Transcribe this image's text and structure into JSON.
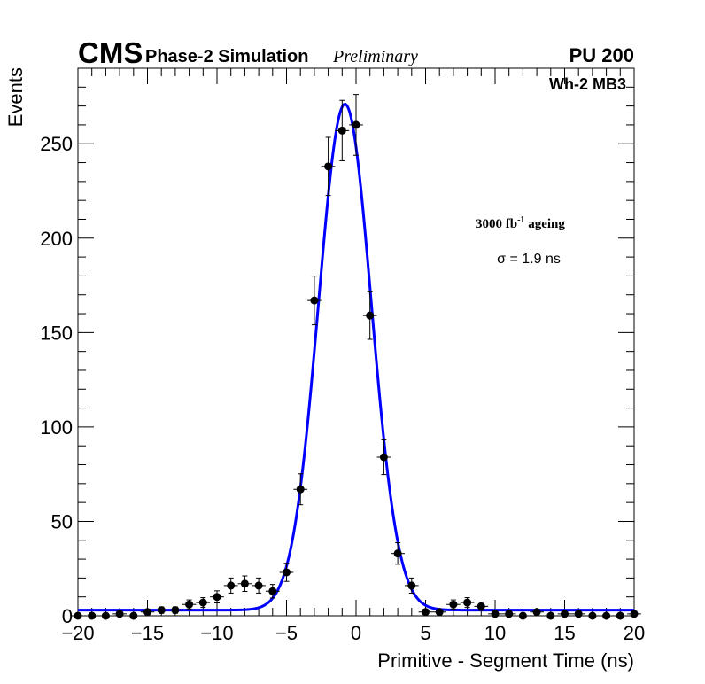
{
  "chart_data": {
    "type": "scatter",
    "header": {
      "experiment": "CMS",
      "subtitle": "Phase-2 Simulation",
      "status": "Preliminary",
      "pileup": "PU 200"
    },
    "region_label": "Wh-2 MB3",
    "annotations": {
      "ageing_main": "3000 fb",
      "ageing_sup": "-1",
      "ageing_tail": " ageing",
      "sigma": "σ = 1.9 ns"
    },
    "xlabel": "Primitive - Segment Time (ns)",
    "ylabel": "Events",
    "xlim": [
      -20,
      20
    ],
    "ylim": [
      0,
      290
    ],
    "xticks": [
      -20,
      -15,
      -10,
      -5,
      0,
      5,
      10,
      15,
      20
    ],
    "xtick_labels": [
      "−20",
      "−15",
      "−10",
      "−5",
      "0",
      "5",
      "10",
      "15",
      "20"
    ],
    "yticks": [
      0,
      50,
      100,
      150,
      200,
      250
    ],
    "ytick_labels": [
      "0",
      "50",
      "100",
      "150",
      "200",
      "250"
    ],
    "bin_width": 1,
    "series": [
      {
        "name": "Simulation",
        "x": [
          -20,
          -19,
          -18,
          -17,
          -16,
          -15,
          -14,
          -13,
          -12,
          -11,
          -10,
          -9,
          -8,
          -7,
          -6,
          -5,
          -4,
          -3,
          -2,
          -1,
          0,
          1,
          2,
          3,
          4,
          5,
          6,
          7,
          8,
          9,
          10,
          11,
          12,
          13,
          14,
          15,
          16,
          17,
          18,
          19,
          20
        ],
        "y": [
          0,
          0,
          0,
          1,
          0,
          2,
          3,
          3,
          6,
          7,
          10,
          16,
          17,
          16,
          13,
          23,
          67,
          167,
          238,
          257,
          260,
          159,
          84,
          33,
          16,
          2,
          2,
          6,
          7,
          5,
          1,
          1,
          0,
          2,
          0,
          1,
          1,
          0,
          0,
          0,
          1
        ],
        "yerr": [
          0,
          0,
          0,
          1,
          0,
          1.4,
          1.7,
          1.7,
          2.4,
          2.6,
          3.2,
          4.0,
          4.1,
          4.0,
          3.6,
          4.8,
          8.2,
          12.9,
          15.4,
          16.0,
          16.1,
          12.6,
          9.2,
          5.7,
          4.0,
          1.4,
          1.4,
          2.4,
          2.6,
          2.2,
          1,
          1,
          0,
          1.4,
          0,
          1,
          1,
          0,
          0,
          0,
          1
        ]
      }
    ],
    "fit": {
      "name": "Gaussian fit",
      "color": "#0000ff",
      "amplitude": 268,
      "mean": -0.8,
      "sigma": 1.9,
      "baseline": 3
    }
  }
}
